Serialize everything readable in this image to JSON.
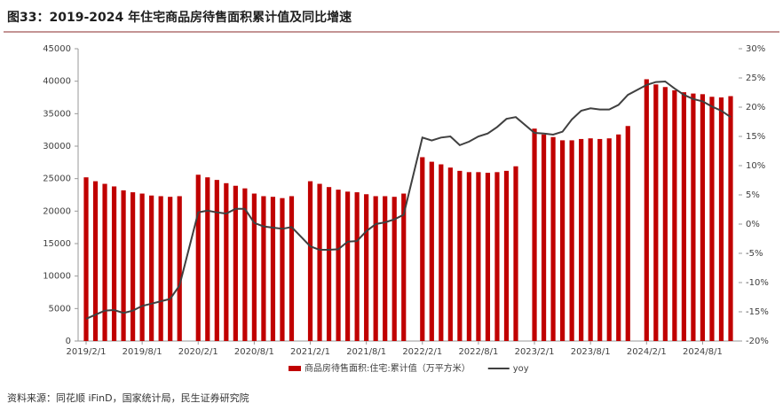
{
  "chart_data": {
    "type": "bar_line",
    "title": "图33：2019-2024 年住宅商品房待售面积累计值及同比增速",
    "source": "资料来源：同花顺 iFinD，国家统计局，民生证券研究院",
    "x": [
      "2019-02",
      "2019-03",
      "2019-04",
      "2019-05",
      "2019-06",
      "2019-07",
      "2019-08",
      "2019-09",
      "2019-10",
      "2019-11",
      "2019-12",
      "2020-02",
      "2020-03",
      "2020-04",
      "2020-05",
      "2020-06",
      "2020-07",
      "2020-08",
      "2020-09",
      "2020-10",
      "2020-11",
      "2020-12",
      "2021-02",
      "2021-03",
      "2021-04",
      "2021-05",
      "2021-06",
      "2021-07",
      "2021-08",
      "2021-09",
      "2021-10",
      "2021-11",
      "2021-12",
      "2022-02",
      "2022-03",
      "2022-04",
      "2022-05",
      "2022-06",
      "2022-07",
      "2022-08",
      "2022-09",
      "2022-10",
      "2022-11",
      "2022-12",
      "2023-02",
      "2023-03",
      "2023-04",
      "2023-05",
      "2023-06",
      "2023-07",
      "2023-08",
      "2023-09",
      "2023-10",
      "2023-11",
      "2023-12",
      "2024-02",
      "2024-03",
      "2024-04",
      "2024-05",
      "2024-06",
      "2024-07",
      "2024-08",
      "2024-09",
      "2024-10",
      "2024-11"
    ],
    "xlim": [
      "2019-02",
      "2024-11"
    ],
    "xticks": [
      {
        "value": "2019-02",
        "label": "2019/2/1"
      },
      {
        "value": "2019-08",
        "label": "2019/8/1"
      },
      {
        "value": "2020-02",
        "label": "2020/2/1"
      },
      {
        "value": "2020-08",
        "label": "2020/8/1"
      },
      {
        "value": "2021-02",
        "label": "2021/2/1"
      },
      {
        "value": "2021-08",
        "label": "2021/8/1"
      },
      {
        "value": "2022-02",
        "label": "2022/2/1"
      },
      {
        "value": "2022-08",
        "label": "2022/8/1"
      },
      {
        "value": "2023-02",
        "label": "2023/2/1"
      },
      {
        "value": "2023-08",
        "label": "2023/8/1"
      },
      {
        "value": "2024-02",
        "label": "2024/2/1"
      },
      {
        "value": "2024-08",
        "label": "2024/8/1"
      }
    ],
    "series": [
      {
        "name": "商品房待售面积:住宅:累计值（万平方米）",
        "type": "bar",
        "color": "#c00000",
        "values": [
          25200,
          24600,
          24200,
          23800,
          23200,
          22900,
          22700,
          22400,
          22300,
          22200,
          22300,
          25600,
          25200,
          24800,
          24300,
          23900,
          23500,
          22700,
          22300,
          22200,
          22000,
          22300,
          24600,
          24200,
          23700,
          23300,
          23000,
          22900,
          22600,
          22300,
          22300,
          22200,
          22700,
          28300,
          27600,
          27200,
          26700,
          26200,
          26000,
          26000,
          25900,
          26000,
          26200,
          26900,
          32700,
          31800,
          31400,
          30900,
          30900,
          31100,
          31200,
          31100,
          31200,
          31800,
          33100,
          40300,
          39500,
          39100,
          38600,
          38300,
          38100,
          38000,
          37600,
          37500,
          37700
        ]
      },
      {
        "name": "yoy",
        "type": "line",
        "color": "#404040",
        "axis": "y2",
        "values": [
          -16.2,
          -15.5,
          -14.8,
          -14.7,
          -15.2,
          -14.8,
          -14,
          -13.6,
          -13.2,
          -12.8,
          -10.5,
          2.0,
          2.3,
          2.0,
          1.8,
          2.6,
          2.6,
          0.2,
          -0.4,
          -0.6,
          -0.8,
          -0.5,
          -3.8,
          -4.4,
          -4.4,
          -4.3,
          -3.0,
          -2.9,
          -1.2,
          0.0,
          0.3,
          0.8,
          1.6,
          14.8,
          14.3,
          14.8,
          15.0,
          13.5,
          14.1,
          15.0,
          15.5,
          16.6,
          18.0,
          18.3,
          15.6,
          15.5,
          15.3,
          15.8,
          17.9,
          19.4,
          19.8,
          19.6,
          19.6,
          20.4,
          22.1,
          23.8,
          24.3,
          24.4,
          23.2,
          22.1,
          21.4,
          21.0,
          20.1,
          19.4,
          18.3
        ]
      }
    ],
    "ylim": [
      0,
      45000
    ],
    "yticks": [
      0,
      5000,
      10000,
      15000,
      20000,
      25000,
      30000,
      35000,
      40000,
      45000
    ],
    "y2lim": [
      -20,
      30
    ],
    "y2ticks": [
      {
        "value": -20,
        "label": "-20%"
      },
      {
        "value": -15,
        "label": "-15%"
      },
      {
        "value": -10,
        "label": "-10%"
      },
      {
        "value": -5,
        "label": "-5%"
      },
      {
        "value": 0,
        "label": "0%"
      },
      {
        "value": 5,
        "label": "5%"
      },
      {
        "value": 10,
        "label": "10%"
      },
      {
        "value": 15,
        "label": "15%"
      },
      {
        "value": 20,
        "label": "20%"
      },
      {
        "value": 25,
        "label": "25%"
      },
      {
        "value": 30,
        "label": "30%"
      }
    ],
    "legend": "bottom",
    "grid": false
  }
}
